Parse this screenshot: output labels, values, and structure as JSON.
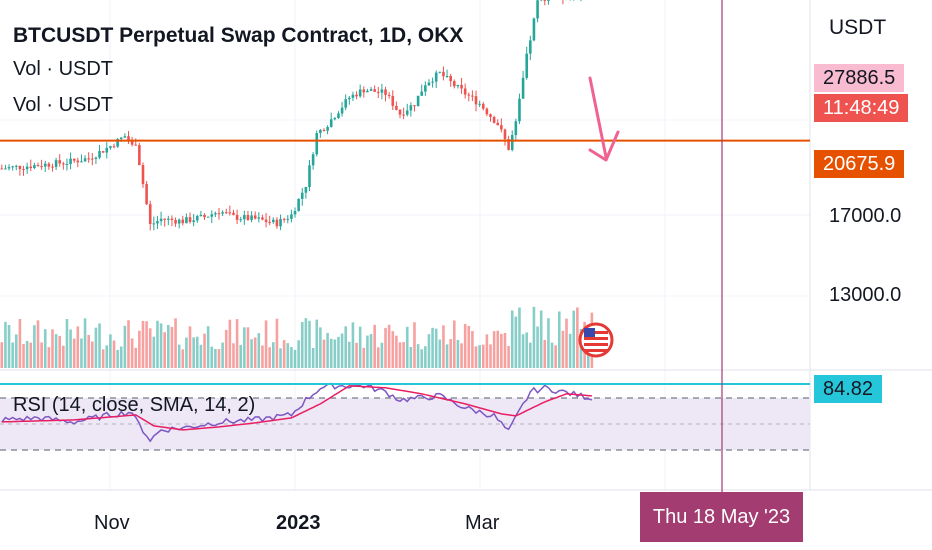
{
  "title": "BTCUSDT Perpetual Swap Contract, 1D, OKX",
  "legend": [
    "Vol · USDT",
    "Vol · USDT"
  ],
  "rsi_label": "RSI (14, close, SMA, 14, 2)",
  "currency": "USDT",
  "colors": {
    "up": "#26a69a",
    "down": "#ef5350",
    "price_line": "#f06292",
    "support_line": "#e65100",
    "arrow": "#f06292",
    "rsi": "#7e57c2",
    "rsi_ma": "#e91e63",
    "rsi_band": "#ede7f6",
    "crosshair": "#a23c71",
    "rsi_badge": "#26c6da"
  },
  "icons": [
    "us-flag-icon"
  ],
  "chart_data": {
    "type": "candlestick",
    "y_ticks": [
      "17000.0",
      "13000.0"
    ],
    "x_ticks": [
      "Nov",
      "2023",
      "Mar"
    ],
    "price_levels": {
      "last_price": "27886.5",
      "countdown": "11:48:49",
      "support": "20675.9"
    },
    "rsi_value": "84.82",
    "crosshair_date": "Thu 18 May '23",
    "close_path": [
      [
        0,
        19300
      ],
      [
        6,
        19400
      ],
      [
        12,
        19500
      ],
      [
        18,
        19600
      ],
      [
        24,
        19800
      ],
      [
        30,
        20400
      ],
      [
        34,
        20900
      ],
      [
        36,
        20400
      ],
      [
        37,
        20600
      ],
      [
        41,
        16500
      ],
      [
        44,
        16800
      ],
      [
        50,
        16700
      ],
      [
        56,
        16900
      ],
      [
        60,
        17200
      ],
      [
        64,
        16900
      ],
      [
        70,
        16800
      ],
      [
        76,
        16600
      ],
      [
        80,
        17000
      ],
      [
        84,
        18500
      ],
      [
        87,
        21000
      ],
      [
        90,
        21500
      ],
      [
        96,
        22800
      ],
      [
        100,
        23200
      ],
      [
        106,
        23000
      ],
      [
        110,
        22000
      ],
      [
        114,
        22500
      ],
      [
        117,
        23500
      ],
      [
        121,
        24000
      ],
      [
        125,
        23400
      ],
      [
        128,
        23000
      ],
      [
        132,
        22500
      ],
      [
        137,
        21500
      ],
      [
        140,
        20300
      ],
      [
        142,
        21500
      ],
      [
        145,
        24800
      ],
      [
        148,
        27500
      ],
      [
        152,
        28000
      ],
      [
        156,
        27800
      ],
      [
        160,
        28100
      ],
      [
        163,
        27886.5
      ]
    ],
    "rsi_path": [
      [
        0,
        50
      ],
      [
        10,
        52
      ],
      [
        20,
        48
      ],
      [
        30,
        55
      ],
      [
        36,
        58
      ],
      [
        37,
        50
      ],
      [
        41,
        30
      ],
      [
        44,
        40
      ],
      [
        50,
        42
      ],
      [
        60,
        48
      ],
      [
        70,
        50
      ],
      [
        80,
        55
      ],
      [
        84,
        70
      ],
      [
        88,
        82
      ],
      [
        92,
        84
      ],
      [
        100,
        84
      ],
      [
        106,
        78
      ],
      [
        110,
        70
      ],
      [
        116,
        72
      ],
      [
        121,
        74
      ],
      [
        128,
        62
      ],
      [
        136,
        54
      ],
      [
        140,
        38
      ],
      [
        142,
        52
      ],
      [
        146,
        78
      ],
      [
        150,
        82
      ],
      [
        155,
        78
      ],
      [
        160,
        74
      ],
      [
        163,
        72
      ]
    ],
    "rsi_ma_path": [
      [
        0,
        48
      ],
      [
        20,
        50
      ],
      [
        37,
        55
      ],
      [
        42,
        44
      ],
      [
        50,
        40
      ],
      [
        60,
        43
      ],
      [
        70,
        47
      ],
      [
        80,
        52
      ],
      [
        88,
        66
      ],
      [
        96,
        84
      ],
      [
        106,
        82
      ],
      [
        116,
        76
      ],
      [
        128,
        66
      ],
      [
        138,
        56
      ],
      [
        142,
        54
      ],
      [
        150,
        68
      ],
      [
        156,
        76
      ],
      [
        163,
        74
      ]
    ],
    "sample_count": 164
  }
}
